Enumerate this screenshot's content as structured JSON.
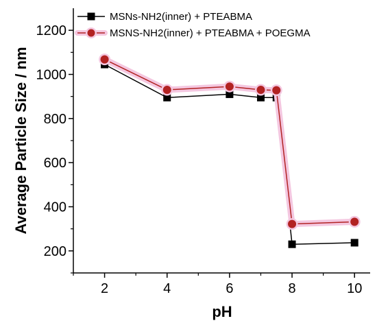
{
  "chart_data": {
    "type": "line",
    "xlabel": "pH",
    "ylabel": "Average Particle Size / nm",
    "xlim": [
      1,
      10.5
    ],
    "ylim": [
      100,
      1300
    ],
    "x_ticks": [
      2,
      4,
      6,
      8,
      10
    ],
    "y_ticks": [
      200,
      400,
      600,
      800,
      1000,
      1200
    ],
    "x_tick_labels": [
      "2",
      "4",
      "6",
      "8",
      "10"
    ],
    "y_tick_labels": [
      "200",
      "400",
      "600",
      "800",
      "1000",
      "1200"
    ],
    "grid": false,
    "legend_position": "top-left",
    "series": [
      {
        "name": "MSNs-NH2(inner) + PTEABMA",
        "color": "#000000",
        "marker": "square",
        "x": [
          2,
          4,
          6,
          7,
          7.5,
          8,
          10
        ],
        "y": [
          1045,
          895,
          910,
          895,
          895,
          230,
          237
        ]
      },
      {
        "name": "MSNS-NH2(inner) + PTEABMA + POEGMA",
        "color": "#b22222",
        "marker": "circle",
        "x": [
          2,
          4,
          6,
          7,
          7.5,
          8,
          10
        ],
        "y": [
          1068,
          930,
          945,
          930,
          928,
          322,
          332
        ]
      }
    ]
  }
}
